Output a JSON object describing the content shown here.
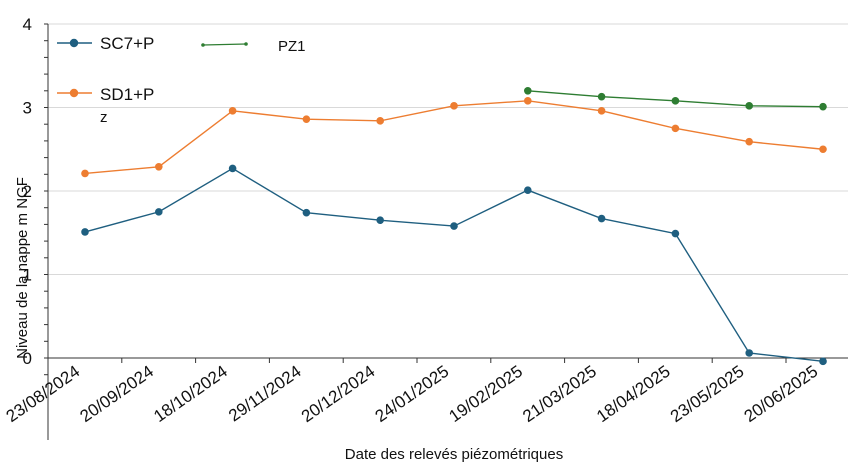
{
  "chart_data": {
    "type": "line",
    "title": "",
    "xlabel": "Date des relevés piézométriques",
    "ylabel": "Niveau de la nappe m NGF",
    "ylim": [
      0,
      4
    ],
    "yticks": [
      "0",
      "1",
      "2",
      "3",
      "4"
    ],
    "grid": true,
    "legend_position": "top-left",
    "categories": [
      "23/08/2024",
      "20/09/2024",
      "18/10/2024",
      "29/11/2024",
      "20/12/2024",
      "24/01/2025",
      "19/02/2025",
      "21/03/2025",
      "18/04/2025",
      "23/05/2025",
      "20/06/2025"
    ],
    "series": [
      {
        "name": "SC7+P",
        "color": "#1f5f80",
        "values": [
          1.51,
          1.75,
          2.27,
          1.74,
          1.65,
          1.58,
          2.01,
          1.67,
          1.49,
          0.06,
          -0.04
        ]
      },
      {
        "name": "SD1+P",
        "name_line2": "z",
        "color": "#ed7d31",
        "values": [
          2.21,
          2.29,
          2.96,
          2.86,
          2.84,
          3.02,
          3.08,
          2.96,
          2.75,
          2.59,
          2.5
        ]
      },
      {
        "name": "PZ1",
        "color": "#2e7d32",
        "values": [
          null,
          null,
          null,
          null,
          null,
          null,
          3.2,
          3.13,
          3.08,
          3.02,
          3.01
        ]
      }
    ]
  }
}
